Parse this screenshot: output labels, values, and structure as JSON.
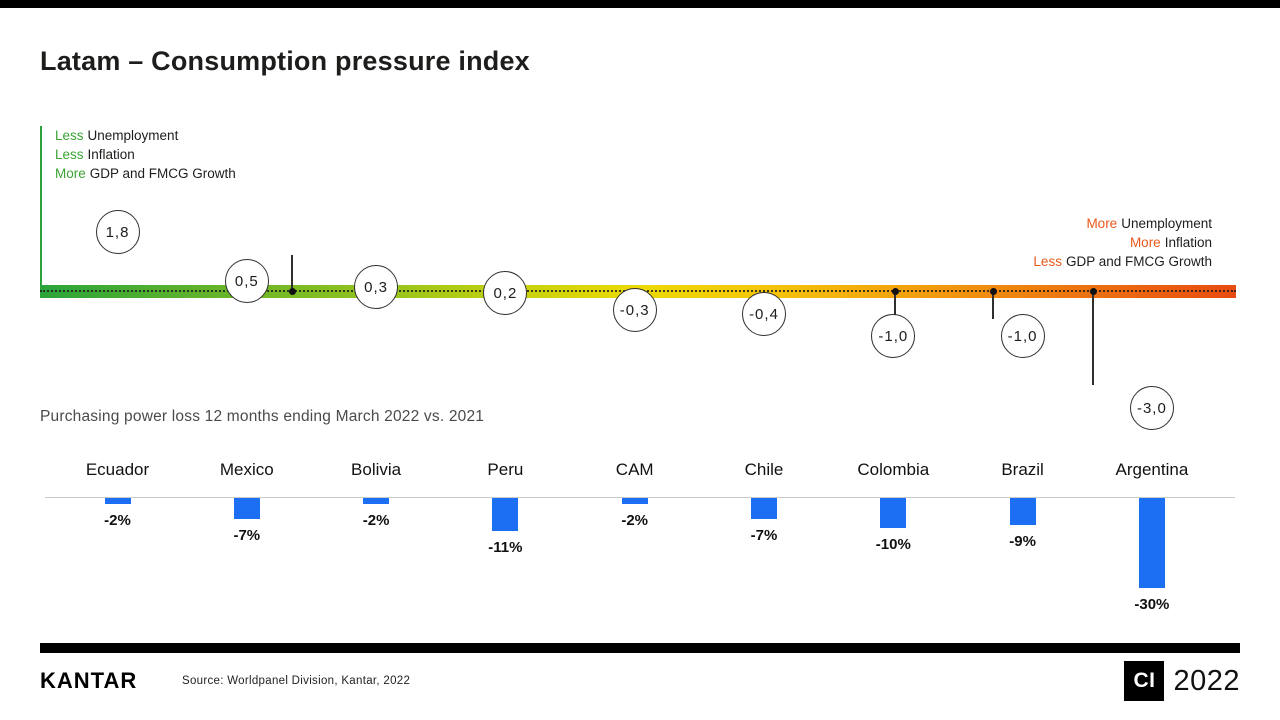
{
  "title": "Latam – Consumption pressure index",
  "legend_left": {
    "lines": [
      {
        "highlight": "Less",
        "rest": "Unemployment"
      },
      {
        "highlight": "Less",
        "rest": "Inflation"
      },
      {
        "highlight": "More",
        "rest": "GDP and FMCG Growth"
      }
    ]
  },
  "legend_right": {
    "lines": [
      {
        "highlight": "More",
        "rest": "Unemployment"
      },
      {
        "highlight": "More",
        "rest": "Inflation"
      },
      {
        "highlight": "Less",
        "rest": "GDP and FMCG Growth"
      }
    ]
  },
  "subtitle": "Purchasing power loss 12 months ending March 2022 vs. 2021",
  "footer": {
    "logo": "KANTAR",
    "source": "Source: Worldpanel Division, Kantar, 2022",
    "badge_ci": "CI",
    "badge_year": "2022"
  },
  "colors": {
    "green": "#3ba435",
    "orange": "#e8591c",
    "bar_blue": "#1c6ef2"
  },
  "chart_data": {
    "type": "combo",
    "title": "Latam – Consumption pressure index",
    "categories": [
      "Ecuador",
      "Mexico",
      "Bolivia",
      "Peru",
      "CAM",
      "Chile",
      "Colombia",
      "Brazil",
      "Argentina"
    ],
    "series": [
      {
        "name": "Consumption pressure index",
        "type": "point-on-gradient-scale",
        "values": [
          1.8,
          0.5,
          0.3,
          0.2,
          -0.3,
          -0.4,
          -1.0,
          -1.0,
          -3.0
        ],
        "labels": [
          "1,8",
          "0,5",
          "0,3",
          "0,2",
          "-0,3",
          "-0,4",
          "-1,0",
          "-1,0",
          "-3,0"
        ]
      },
      {
        "name": "Purchasing power loss 12 months ending March 2022 vs. 2021",
        "type": "bar",
        "unit": "%",
        "values": [
          -2,
          -7,
          -2,
          -11,
          -2,
          -7,
          -10,
          -9,
          -30
        ],
        "labels": [
          "-2%",
          "-7%",
          "-2%",
          "-11%",
          "-2%",
          "-7%",
          "-10%",
          "-9%",
          "-30%"
        ]
      }
    ],
    "scale": {
      "left_meaning": "Less Unemployment, Less Inflation, More GDP and FMCG Growth",
      "right_meaning": "More Unemployment, More Inflation, Less GDP and FMCG Growth",
      "gradient": [
        "#2aa43a",
        "#ecd906",
        "#e84b10"
      ]
    }
  }
}
